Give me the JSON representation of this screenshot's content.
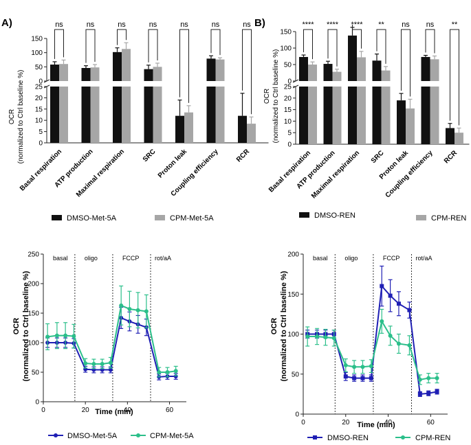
{
  "chart_data": [
    {
      "id": "A",
      "panel_label": "A)",
      "type": "bar",
      "ylabel": "OCR",
      "ylabel2": "(normalized to Ctrl baseline %)",
      "categories": [
        "Basal respiration",
        "ATP production",
        "Maximal respiration",
        "SRC",
        "Proton leak",
        "Coupling efficiency",
        "RCR"
      ],
      "series": [
        {
          "name": "DMSO-Met-5A",
          "color": "#111111",
          "values": [
            58,
            46,
            102,
            42,
            12,
            79,
            12
          ],
          "errors": [
            10,
            8,
            15,
            14,
            7,
            10,
            10
          ]
        },
        {
          "name": "CPM-Met-5A",
          "color": "#a6a6a6",
          "values": [
            60,
            48,
            113,
            50,
            13.5,
            76,
            8.5
          ],
          "errors": [
            14,
            10,
            22,
            13,
            3,
            6,
            3
          ]
        }
      ],
      "significance": [
        "ns",
        "ns",
        "ns",
        "ns",
        "ns",
        "ns",
        "ns"
      ],
      "upper_ticks": [
        "0",
        "50",
        "100",
        "150"
      ],
      "lower_ticks": [
        "0",
        "5",
        "10",
        "15",
        "20",
        "25"
      ],
      "upper_range": [
        0,
        150
      ],
      "lower_range": [
        0,
        25
      ]
    },
    {
      "id": "B",
      "panel_label": "B)",
      "type": "bar",
      "ylabel": "OCR",
      "ylabel2": "(normalized to Ctrl baseline %)",
      "categories": [
        "Basal respiration",
        "ATP production",
        "Maximal respiration",
        "SRC",
        "Proton leak",
        "Coupling efficiency",
        "RCR"
      ],
      "series": [
        {
          "name": "DMSO-REN",
          "color": "#111111",
          "values": [
            73,
            52,
            138,
            62,
            19,
            73,
            7
          ],
          "errors": [
            6,
            8,
            25,
            20,
            3,
            5,
            2
          ]
        },
        {
          "name": "CPM-REN",
          "color": "#a6a6a6",
          "values": [
            50,
            28,
            72,
            32,
            15.5,
            66,
            5
          ],
          "errors": [
            8,
            8,
            18,
            12,
            4,
            10,
            2
          ]
        }
      ],
      "significance": [
        "****",
        "****",
        "****",
        "**",
        "ns",
        "ns",
        "**"
      ],
      "upper_ticks": [
        "0",
        "50",
        "100",
        "150"
      ],
      "lower_ticks": [
        "0",
        "5",
        "10",
        "15",
        "20",
        "25"
      ],
      "upper_range": [
        0,
        150
      ],
      "lower_range": [
        0,
        25
      ]
    },
    {
      "id": "C",
      "type": "line",
      "ylabel": "OCR",
      "ylabel2": "(normalized to Ctrl baseline %)",
      "xlabel": "Time (min)",
      "xlim": [
        0,
        68
      ],
      "ylim": [
        0,
        250
      ],
      "xticks": [
        "0",
        "20",
        "40",
        "60"
      ],
      "yticks": [
        "0",
        "50",
        "100",
        "150",
        "200",
        "250"
      ],
      "phases": [
        "basal",
        "oligo",
        "FCCP",
        "rot/aA"
      ],
      "phase_bounds": [
        15,
        33,
        51
      ],
      "x": [
        2,
        6.5,
        10.5,
        14.5,
        20,
        24,
        28,
        32,
        37,
        41,
        45,
        49,
        55,
        59,
        63
      ],
      "series": [
        {
          "name": "DMSO-Met-5A",
          "color": "#1f1fb4",
          "marker": "circle",
          "values": [
            100,
            100,
            100,
            99,
            55,
            54,
            54,
            54,
            142,
            136,
            131,
            126,
            42,
            43,
            43
          ],
          "errors": [
            8,
            8,
            8,
            8,
            5,
            5,
            5,
            5,
            18,
            16,
            15,
            14,
            5,
            5,
            5
          ]
        },
        {
          "name": "CPM-Met-5A",
          "color": "#2bbf8a",
          "marker": "circle",
          "values": [
            110,
            112,
            112,
            111,
            65,
            64,
            64,
            66,
            163,
            157,
            155,
            153,
            50,
            50,
            52
          ],
          "errors": [
            22,
            22,
            22,
            20,
            8,
            8,
            8,
            9,
            33,
            30,
            30,
            28,
            8,
            8,
            8
          ]
        }
      ]
    },
    {
      "id": "D",
      "type": "line",
      "ylabel": "OCR",
      "ylabel2": "(normalized to Ctrl baseline %)",
      "xlabel": "Time (min)",
      "xlim": [
        0,
        68
      ],
      "ylim": [
        0,
        200
      ],
      "xticks": [
        "0",
        "20",
        "40",
        "60"
      ],
      "yticks": [
        "0",
        "50",
        "100",
        "150",
        "200"
      ],
      "phases": [
        "basal",
        "oligo",
        "FCCP",
        "rot/aA"
      ],
      "phase_bounds": [
        15,
        33,
        51
      ],
      "x": [
        2,
        6.5,
        10.5,
        14.5,
        20,
        24,
        28,
        32,
        37,
        41,
        45,
        50,
        55,
        59,
        63
      ],
      "series": [
        {
          "name": "DMSO-REN",
          "color": "#1f1fb4",
          "marker": "square",
          "values": [
            100,
            100,
            100,
            100,
            47,
            45,
            45,
            45,
            160,
            148,
            138,
            130,
            25,
            26,
            28
          ],
          "errors": [
            5,
            5,
            5,
            5,
            5,
            4,
            4,
            4,
            25,
            20,
            15,
            10,
            3,
            3,
            3
          ]
        },
        {
          "name": "CPM-REN",
          "color": "#2bbf8a",
          "marker": "circle",
          "values": [
            97,
            97,
            96,
            95,
            61,
            59,
            59,
            60,
            116,
            98,
            88,
            86,
            43,
            45,
            45
          ],
          "errors": [
            12,
            10,
            10,
            10,
            8,
            8,
            8,
            8,
            15,
            12,
            12,
            12,
            6,
            6,
            6
          ]
        }
      ]
    }
  ]
}
